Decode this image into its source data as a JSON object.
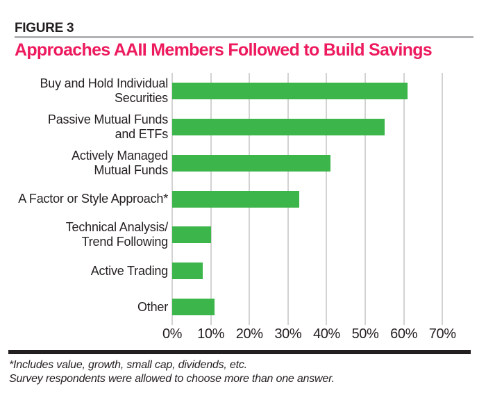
{
  "header": {
    "figure_label": "FIGURE 3",
    "title": "Approaches AAII Members Followed to Build Savings"
  },
  "chart_data": {
    "type": "bar",
    "orientation": "horizontal",
    "title": "Approaches AAII Members Followed to Build Savings",
    "categories": [
      "Buy and Hold Individual Securities",
      "Passive Mutual Funds and ETFs",
      "Actively Managed Mutual Funds",
      "A Factor or Style Approach*",
      "Technical Analysis/Trend Following",
      "Active Trading",
      "Other"
    ],
    "category_label_lines": [
      [
        "Buy and Hold Individual",
        "Securities"
      ],
      [
        "Passive Mutual Funds",
        "and ETFs"
      ],
      [
        "Actively Managed",
        "Mutual Funds"
      ],
      [
        "A Factor or Style Approach*"
      ],
      [
        "Technical Analysis/",
        "Trend Following"
      ],
      [
        "Active Trading"
      ],
      [
        "Other"
      ]
    ],
    "values": [
      61,
      55,
      41,
      33,
      10,
      8,
      11
    ],
    "unit": "%",
    "xlabel": "",
    "ylabel": "",
    "xlim": [
      0,
      75
    ],
    "x_tick_values": [
      0,
      10,
      20,
      30,
      40,
      50,
      60,
      70
    ],
    "x_tick_labels": [
      "0%",
      "10%",
      "20%",
      "30%",
      "40%",
      "50%",
      "60%",
      "70%"
    ],
    "grid": "vertical gridlines at each 10% tick",
    "legend": "none",
    "bar_color": "#3cb54b",
    "gridline_color": "#d2d2d2"
  },
  "footnotes": [
    "*Includes value, growth, small cap, dividends, etc.",
    "Survey respondents were allowed to choose more than one answer."
  ],
  "colors": {
    "title_pink": "#ed1a5e",
    "bar_green": "#3cb54b",
    "grid_gray": "#d2d2d2",
    "header_rule_gray": "#b1b3b5",
    "footer_rule_black": "#231f20",
    "text_black": "#231f20"
  }
}
